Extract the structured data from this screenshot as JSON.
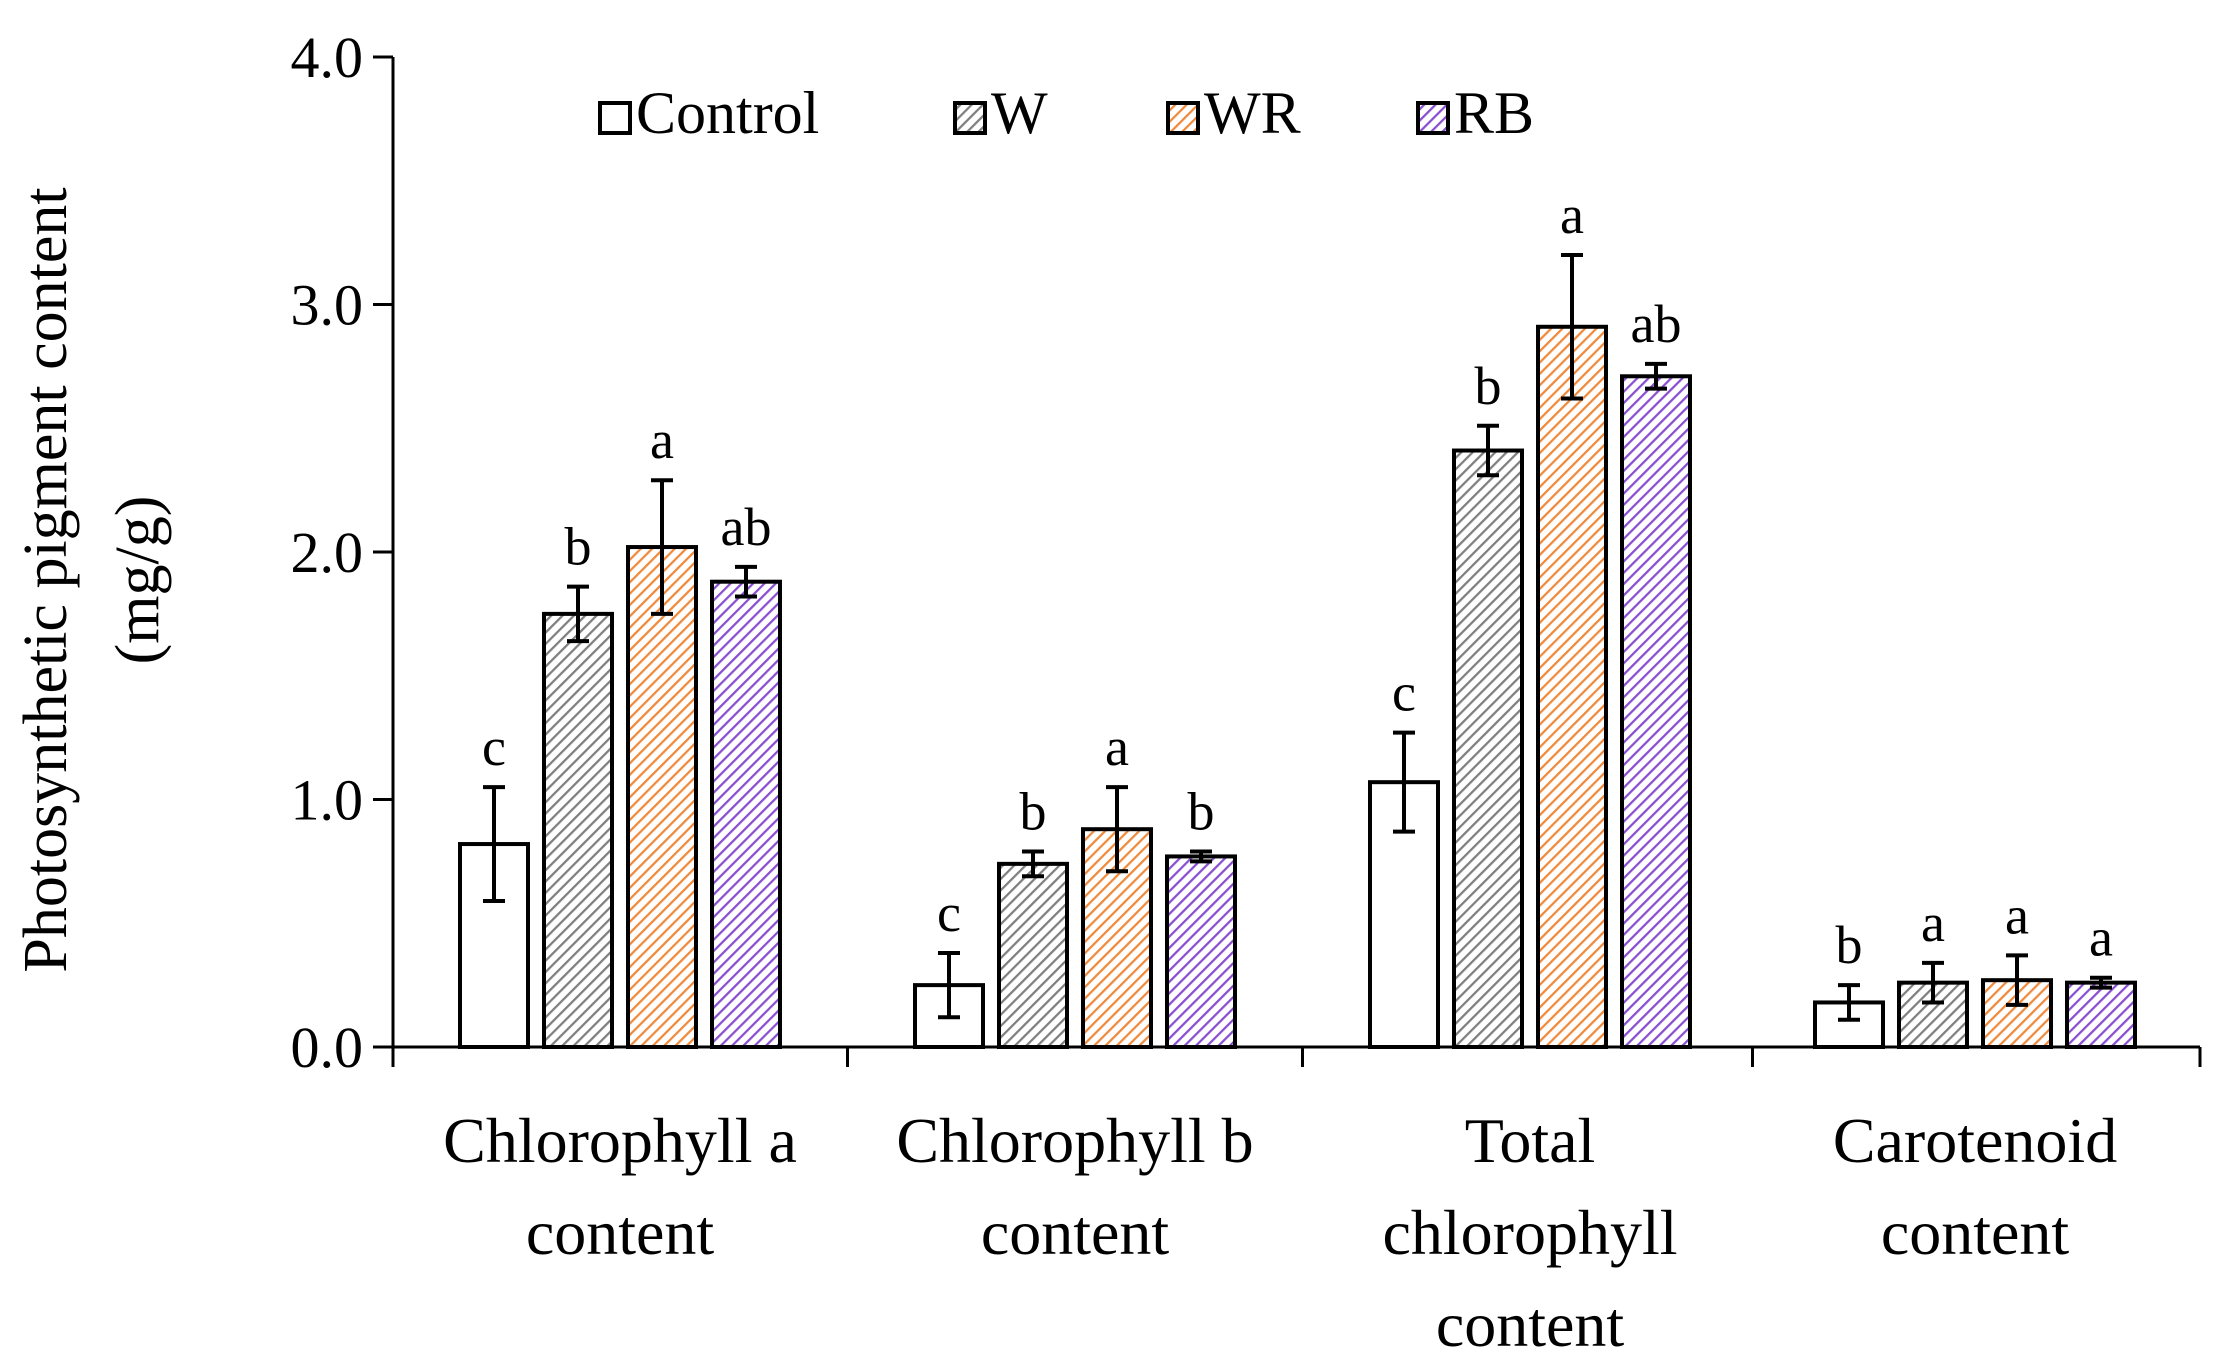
{
  "chart_data": {
    "type": "bar",
    "title": "",
    "ylabel_lines": [
      "Photosynthetic  pigment  content",
      "(mg/g)"
    ],
    "xlabel": "",
    "ylim": [
      0,
      4.0
    ],
    "yticks": [
      0.0,
      1.0,
      2.0,
      3.0,
      4.0
    ],
    "ytick_labels": [
      "0.0",
      "1.0",
      "2.0",
      "3.0",
      "4.0"
    ],
    "categories": [
      [
        "Chlorophyll a",
        "content"
      ],
      [
        "Chlorophyll b",
        "content"
      ],
      [
        "Total",
        "chlorophyll",
        "content"
      ],
      [
        "Carotenoid",
        "content"
      ]
    ],
    "legend_position": "top",
    "series": [
      {
        "name": "Control",
        "fill": "#ffffff",
        "hatch": "none",
        "hatch_color": "#ffffff",
        "values": [
          0.82,
          0.25,
          1.07,
          0.18
        ],
        "errors": [
          0.23,
          0.13,
          0.2,
          0.07
        ],
        "letters": [
          "c",
          "c",
          "c",
          "b"
        ]
      },
      {
        "name": "W",
        "fill": "#ffffff",
        "hatch": "diagonal",
        "hatch_color": "#7f7f7f",
        "values": [
          1.75,
          0.74,
          2.41,
          0.26
        ],
        "errors": [
          0.11,
          0.05,
          0.1,
          0.08
        ],
        "letters": [
          "b",
          "b",
          "b",
          "a"
        ]
      },
      {
        "name": "WR",
        "fill": "#ffffff",
        "hatch": "diagonal",
        "hatch_color": "#ef8a3c",
        "values": [
          2.02,
          0.88,
          2.91,
          0.27
        ],
        "errors": [
          0.27,
          0.17,
          0.29,
          0.1
        ],
        "letters": [
          "a",
          "a",
          "a",
          "a"
        ]
      },
      {
        "name": "RB",
        "fill": "#ffffff",
        "hatch": "diagonal",
        "hatch_color": "#8a4fd1",
        "values": [
          1.88,
          0.77,
          2.71,
          0.26
        ],
        "errors": [
          0.06,
          0.02,
          0.05,
          0.02
        ],
        "letters": [
          "ab",
          "b",
          "ab",
          "a"
        ]
      }
    ]
  }
}
